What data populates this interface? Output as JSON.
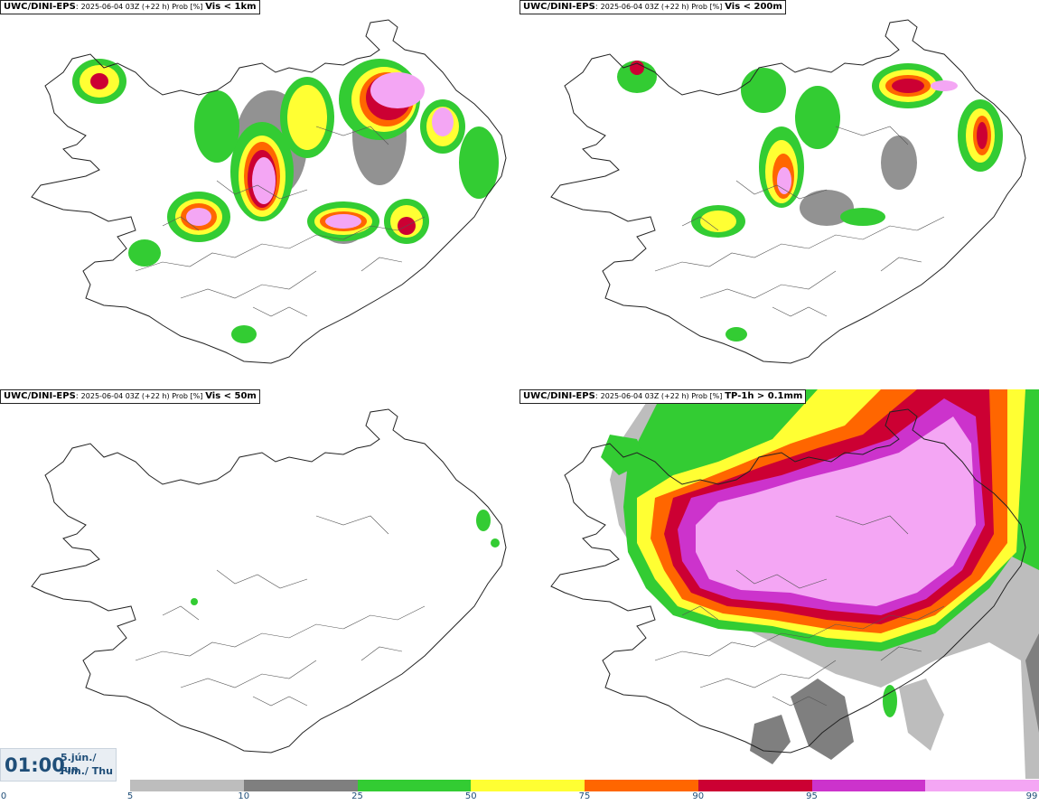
{
  "panels": [
    {
      "model": "UWC/DINI-EPS",
      "run_info": "2025-06-04 03Z (+22 h) Prob [%]",
      "variable": "Vis < 1km"
    },
    {
      "model": "UWC/DINI-EPS",
      "run_info": "2025-06-04 03Z (+22 h) Prob [%]",
      "variable": "Vis < 200m"
    },
    {
      "model": "UWC/DINI-EPS",
      "run_info": "2025-06-04 03Z (+22 h) Prob [%]",
      "variable": "Vis < 50m"
    },
    {
      "model": "UWC/DINI-EPS",
      "run_info": "2025-06-04 03Z (+22 h) Prob [%]",
      "variable": "TP-1h > 0.1mm"
    }
  ],
  "valid_time": {
    "time": "01:00",
    "date_local": "5.jún./ Jun",
    "weekday": "Fim./ Thu"
  },
  "colorbar": {
    "ticks": [
      "0",
      "5",
      "10",
      "25",
      "50",
      "75",
      "90",
      "95",
      "99"
    ],
    "colors": [
      "#bdbdbd",
      "#7f7f7f",
      "#33cc33",
      "#ffff33",
      "#ff6600",
      "#cc0033",
      "#cc33cc",
      "#f4a6f4"
    ]
  }
}
